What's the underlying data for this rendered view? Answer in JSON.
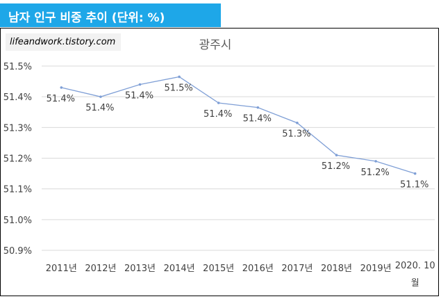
{
  "header": {
    "title": "남자 인구 비중 추이 (단위: %)"
  },
  "watermark": "lifeandwork.tistory.com",
  "colors": {
    "header_bg": "#1ea7e8",
    "line": "#7f9fd6",
    "grid": "#d9d9d9"
  },
  "chart_data": {
    "type": "line",
    "title": "광주시",
    "xlabel": "",
    "ylabel": "",
    "categories": [
      "2011년",
      "2012년",
      "2013년",
      "2014년",
      "2015년",
      "2016년",
      "2017년",
      "2018년",
      "2019년",
      "2020. 10 월"
    ],
    "y_tick_labels": [
      "50.9%",
      "51.0%",
      "51.1%",
      "51.2%",
      "51.3%",
      "51.4%",
      "51.5%"
    ],
    "ylim": [
      50.9,
      51.5
    ],
    "grid": true,
    "series": [
      {
        "values": [
          51.43,
          51.4,
          51.44,
          51.465,
          51.38,
          51.365,
          51.315,
          51.21,
          51.19,
          51.15
        ],
        "labels": [
          "51.4%",
          "51.4%",
          "51.4%",
          "51.5%",
          "51.4%",
          "51.4%",
          "51.3%",
          "51.2%",
          "51.2%",
          "51.1%"
        ]
      }
    ]
  }
}
